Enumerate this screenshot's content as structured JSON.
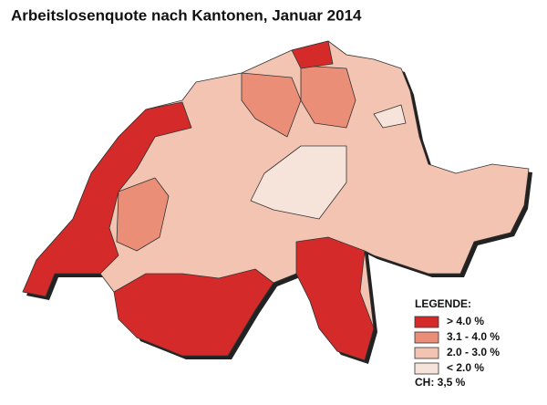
{
  "title": "Arbeitslosenquote nach Kantonen, Januar 2014",
  "legend": {
    "title": "LEGENDE:",
    "items": [
      {
        "label": "> 4.0 %",
        "color": "#d42a2a"
      },
      {
        "label": "3.1 - 4.0 %",
        "color": "#eb8e78"
      },
      {
        "label": "2.0 - 3.0 %",
        "color": "#f4c4b2"
      },
      {
        "label": "< 2.0 %",
        "color": "#f6e4da"
      }
    ]
  },
  "note": "CH: 3,5 %"
}
